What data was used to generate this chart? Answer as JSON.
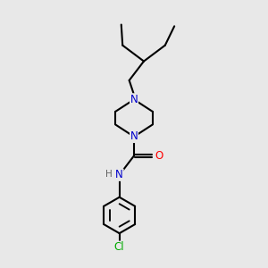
{
  "background_color": "#e8e8e8",
  "bond_color": "#000000",
  "bond_width": 1.5,
  "atom_colors": {
    "N": "#0000cc",
    "O": "#ff0000",
    "Cl": "#00aa00",
    "C": "#000000",
    "H": "#606060"
  },
  "font_size_atoms": 8.5,
  "figsize": [
    3.0,
    3.0
  ],
  "dpi": 100
}
